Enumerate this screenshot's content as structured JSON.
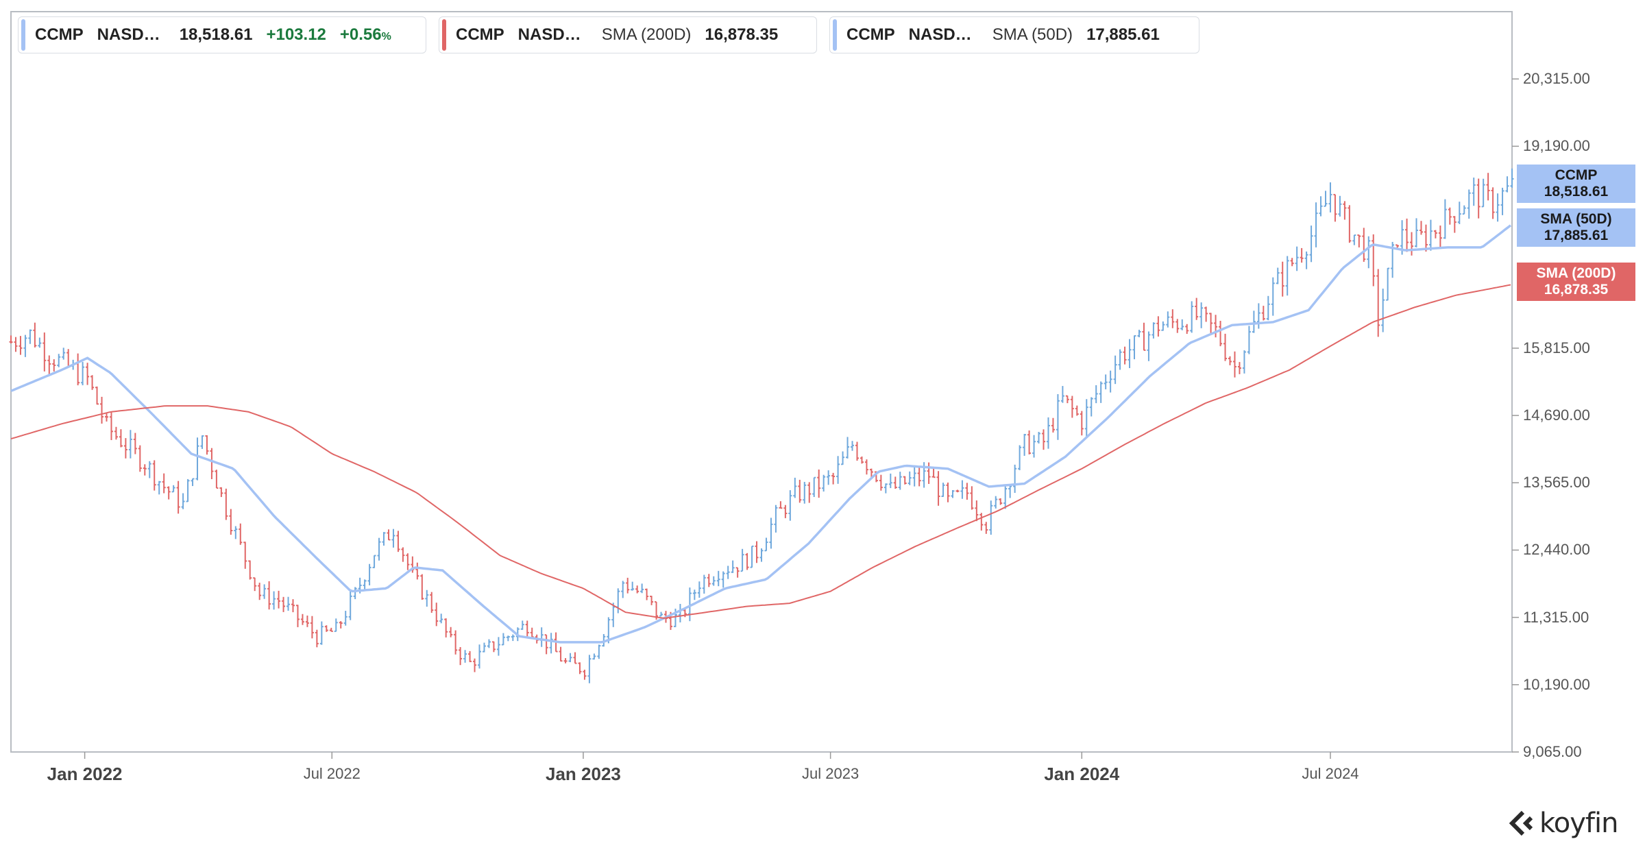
{
  "legend": [
    {
      "symbol": "CCMP",
      "exchange": "NASD…",
      "value": "18,518.61",
      "change": "+103.12",
      "pct": "+0.56",
      "pct_symbol": "%",
      "color": "#a4c2f4"
    },
    {
      "symbol": "CCMP",
      "exchange": "NASD…",
      "indicator": "SMA (200D)",
      "value": "16,878.35",
      "color": "#e06666"
    },
    {
      "symbol": "CCMP",
      "exchange": "NASD…",
      "indicator": "SMA (50D)",
      "value": "17,885.61",
      "color": "#a4c2f4"
    }
  ],
  "price_tags": [
    {
      "line1": "CCMP",
      "line2": "18,518.61",
      "color": "#a4c2f4"
    },
    {
      "line1": "SMA (50D)",
      "line2": "17,885.61",
      "color": "#a4c2f4"
    },
    {
      "line1": "SMA (200D)",
      "line2": "16,878.35",
      "color": "#e06666"
    }
  ],
  "logo": {
    "text": "koyfin",
    "icon": "koyfin-logo-icon"
  },
  "chart_data": {
    "type": "ohlc-line",
    "title": "",
    "xlabel": "",
    "ylabel": "",
    "ylim": [
      9065,
      21440
    ],
    "y_ticks": [
      {
        "value": 20315,
        "label": "20,315.00"
      },
      {
        "value": 19190,
        "label": "19,190.00"
      },
      {
        "value": 15815,
        "label": "15,815.00"
      },
      {
        "value": 14690,
        "label": "14,690.00"
      },
      {
        "value": 13565,
        "label": "13,565.00"
      },
      {
        "value": 12440,
        "label": "12,440.00"
      },
      {
        "value": 11315,
        "label": "11,315.00"
      },
      {
        "value": 10190,
        "label": "10,190.00"
      },
      {
        "value": 9065,
        "label": "9,065.00"
      }
    ],
    "x_range": [
      "2021-11-08",
      "2024-11-11"
    ],
    "x_ticks": [
      {
        "date": "2022-01-01",
        "label": "Jan 2022",
        "major": true
      },
      {
        "date": "2022-07-01",
        "label": "Jul 2022",
        "major": false
      },
      {
        "date": "2023-01-01",
        "label": "Jan 2023",
        "major": true
      },
      {
        "date": "2023-07-01",
        "label": "Jul 2023",
        "major": false
      },
      {
        "date": "2024-01-01",
        "label": "Jan 2024",
        "major": true
      },
      {
        "date": "2024-07-01",
        "label": "Jul 2024",
        "major": false
      }
    ],
    "grid": false,
    "up_color": "#6fa8dc",
    "down_color": "#e06666",
    "series": [
      {
        "name": "CCMP",
        "kind": "close",
        "points": [
          [
            "2021-11-08",
            15920
          ],
          [
            "2021-11-22",
            16050
          ],
          [
            "2021-12-06",
            15700
          ],
          [
            "2021-12-20",
            15500
          ],
          [
            "2022-01-03",
            15300
          ],
          [
            "2022-01-17",
            14500
          ],
          [
            "2022-01-31",
            14200
          ],
          [
            "2022-02-14",
            13900
          ],
          [
            "2022-02-28",
            13500
          ],
          [
            "2022-03-14",
            13200
          ],
          [
            "2022-03-28",
            14350
          ],
          [
            "2022-04-11",
            13350
          ],
          [
            "2022-04-25",
            12500
          ],
          [
            "2022-05-09",
            11700
          ],
          [
            "2022-05-23",
            11600
          ],
          [
            "2022-06-06",
            11300
          ],
          [
            "2022-06-20",
            11000
          ],
          [
            "2022-07-04",
            11100
          ],
          [
            "2022-07-18",
            11700
          ],
          [
            "2022-08-01",
            12400
          ],
          [
            "2022-08-15",
            12800
          ],
          [
            "2022-08-29",
            12000
          ],
          [
            "2022-09-12",
            11500
          ],
          [
            "2022-09-26",
            10900
          ],
          [
            "2022-10-10",
            10550
          ],
          [
            "2022-10-24",
            10800
          ],
          [
            "2022-11-07",
            11000
          ],
          [
            "2022-11-21",
            11200
          ],
          [
            "2022-12-05",
            10900
          ],
          [
            "2022-12-19",
            10550
          ],
          [
            "2023-01-02",
            10450
          ],
          [
            "2023-01-16",
            11100
          ],
          [
            "2023-01-30",
            11900
          ],
          [
            "2023-02-13",
            11700
          ],
          [
            "2023-02-27",
            11300
          ],
          [
            "2023-03-13",
            11300
          ],
          [
            "2023-03-27",
            11900
          ],
          [
            "2023-04-10",
            12100
          ],
          [
            "2023-04-24",
            12200
          ],
          [
            "2023-05-08",
            12400
          ],
          [
            "2023-05-22",
            13000
          ],
          [
            "2023-06-05",
            13350
          ],
          [
            "2023-06-19",
            13500
          ],
          [
            "2023-07-03",
            13650
          ],
          [
            "2023-07-17",
            14200
          ],
          [
            "2023-07-31",
            13800
          ],
          [
            "2023-08-14",
            13450
          ],
          [
            "2023-08-28",
            13600
          ],
          [
            "2023-09-11",
            13700
          ],
          [
            "2023-09-25",
            13250
          ],
          [
            "2023-10-09",
            13400
          ],
          [
            "2023-10-23",
            12900
          ],
          [
            "2023-11-06",
            13500
          ],
          [
            "2023-11-20",
            14200
          ],
          [
            "2023-12-04",
            14250
          ],
          [
            "2023-12-18",
            14950
          ],
          [
            "2024-01-01",
            14600
          ],
          [
            "2024-01-15",
            15200
          ],
          [
            "2024-01-29",
            15700
          ],
          [
            "2024-02-12",
            15900
          ],
          [
            "2024-02-26",
            16200
          ],
          [
            "2024-03-11",
            16250
          ],
          [
            "2024-03-25",
            16350
          ],
          [
            "2024-04-08",
            16100
          ],
          [
            "2024-04-22",
            15500
          ],
          [
            "2024-05-06",
            16200
          ],
          [
            "2024-05-20",
            16800
          ],
          [
            "2024-06-03",
            17250
          ],
          [
            "2024-06-17",
            17700
          ],
          [
            "2024-07-01",
            18400
          ],
          [
            "2024-07-15",
            17800
          ],
          [
            "2024-07-29",
            17400
          ],
          [
            "2024-08-05",
            16300
          ],
          [
            "2024-08-19",
            17700
          ],
          [
            "2024-09-02",
            17600
          ],
          [
            "2024-09-16",
            17800
          ],
          [
            "2024-09-30",
            18100
          ],
          [
            "2024-10-14",
            18400
          ],
          [
            "2024-10-28",
            18250
          ],
          [
            "2024-11-11",
            18518.61
          ]
        ]
      },
      {
        "name": "SMA (50D)",
        "kind": "line",
        "points": [
          [
            "2021-11-08",
            15100
          ],
          [
            "2021-12-15",
            15450
          ],
          [
            "2022-01-03",
            15650
          ],
          [
            "2022-01-20",
            15400
          ],
          [
            "2022-02-20",
            14700
          ],
          [
            "2022-03-20",
            14050
          ],
          [
            "2022-04-20",
            13800
          ],
          [
            "2022-05-20",
            13000
          ],
          [
            "2022-06-20",
            12300
          ],
          [
            "2022-07-15",
            11750
          ],
          [
            "2022-08-10",
            11800
          ],
          [
            "2022-08-30",
            12150
          ],
          [
            "2022-09-20",
            12100
          ],
          [
            "2022-10-20",
            11500
          ],
          [
            "2022-11-15",
            11000
          ],
          [
            "2022-12-15",
            10900
          ],
          [
            "2023-01-15",
            10900
          ],
          [
            "2023-02-15",
            11150
          ],
          [
            "2023-03-15",
            11450
          ],
          [
            "2023-04-15",
            11800
          ],
          [
            "2023-05-15",
            11950
          ],
          [
            "2023-06-15",
            12550
          ],
          [
            "2023-07-15",
            13300
          ],
          [
            "2023-08-05",
            13750
          ],
          [
            "2023-08-25",
            13850
          ],
          [
            "2023-09-25",
            13800
          ],
          [
            "2023-10-25",
            13500
          ],
          [
            "2023-11-20",
            13550
          ],
          [
            "2023-12-20",
            14000
          ],
          [
            "2024-01-20",
            14650
          ],
          [
            "2024-02-20",
            15350
          ],
          [
            "2024-03-20",
            15900
          ],
          [
            "2024-04-20",
            16200
          ],
          [
            "2024-05-20",
            16250
          ],
          [
            "2024-06-15",
            16450
          ],
          [
            "2024-07-10",
            17150
          ],
          [
            "2024-08-01",
            17550
          ],
          [
            "2024-08-25",
            17450
          ],
          [
            "2024-09-25",
            17500
          ],
          [
            "2024-10-20",
            17500
          ],
          [
            "2024-11-11",
            17885.61
          ]
        ]
      },
      {
        "name": "SMA (200D)",
        "kind": "line",
        "points": [
          [
            "2021-11-08",
            14300
          ],
          [
            "2021-12-15",
            14550
          ],
          [
            "2022-01-20",
            14750
          ],
          [
            "2022-03-01",
            14850
          ],
          [
            "2022-04-01",
            14850
          ],
          [
            "2022-05-01",
            14750
          ],
          [
            "2022-06-01",
            14500
          ],
          [
            "2022-07-01",
            14050
          ],
          [
            "2022-08-01",
            13750
          ],
          [
            "2022-09-01",
            13400
          ],
          [
            "2022-10-01",
            12900
          ],
          [
            "2022-11-01",
            12350
          ],
          [
            "2022-12-01",
            12050
          ],
          [
            "2023-01-01",
            11800
          ],
          [
            "2023-02-01",
            11400
          ],
          [
            "2023-03-01",
            11300
          ],
          [
            "2023-04-01",
            11400
          ],
          [
            "2023-05-01",
            11500
          ],
          [
            "2023-06-01",
            11550
          ],
          [
            "2023-07-01",
            11750
          ],
          [
            "2023-08-01",
            12150
          ],
          [
            "2023-09-01",
            12500
          ],
          [
            "2023-10-01",
            12800
          ],
          [
            "2023-11-01",
            13100
          ],
          [
            "2023-12-01",
            13450
          ],
          [
            "2024-01-01",
            13800
          ],
          [
            "2024-02-01",
            14200
          ],
          [
            "2024-03-01",
            14550
          ],
          [
            "2024-04-01",
            14900
          ],
          [
            "2024-05-01",
            15150
          ],
          [
            "2024-06-01",
            15450
          ],
          [
            "2024-07-01",
            15850
          ],
          [
            "2024-08-01",
            16250
          ],
          [
            "2024-09-01",
            16500
          ],
          [
            "2024-10-01",
            16700
          ],
          [
            "2024-11-11",
            16878.35
          ]
        ]
      }
    ]
  }
}
